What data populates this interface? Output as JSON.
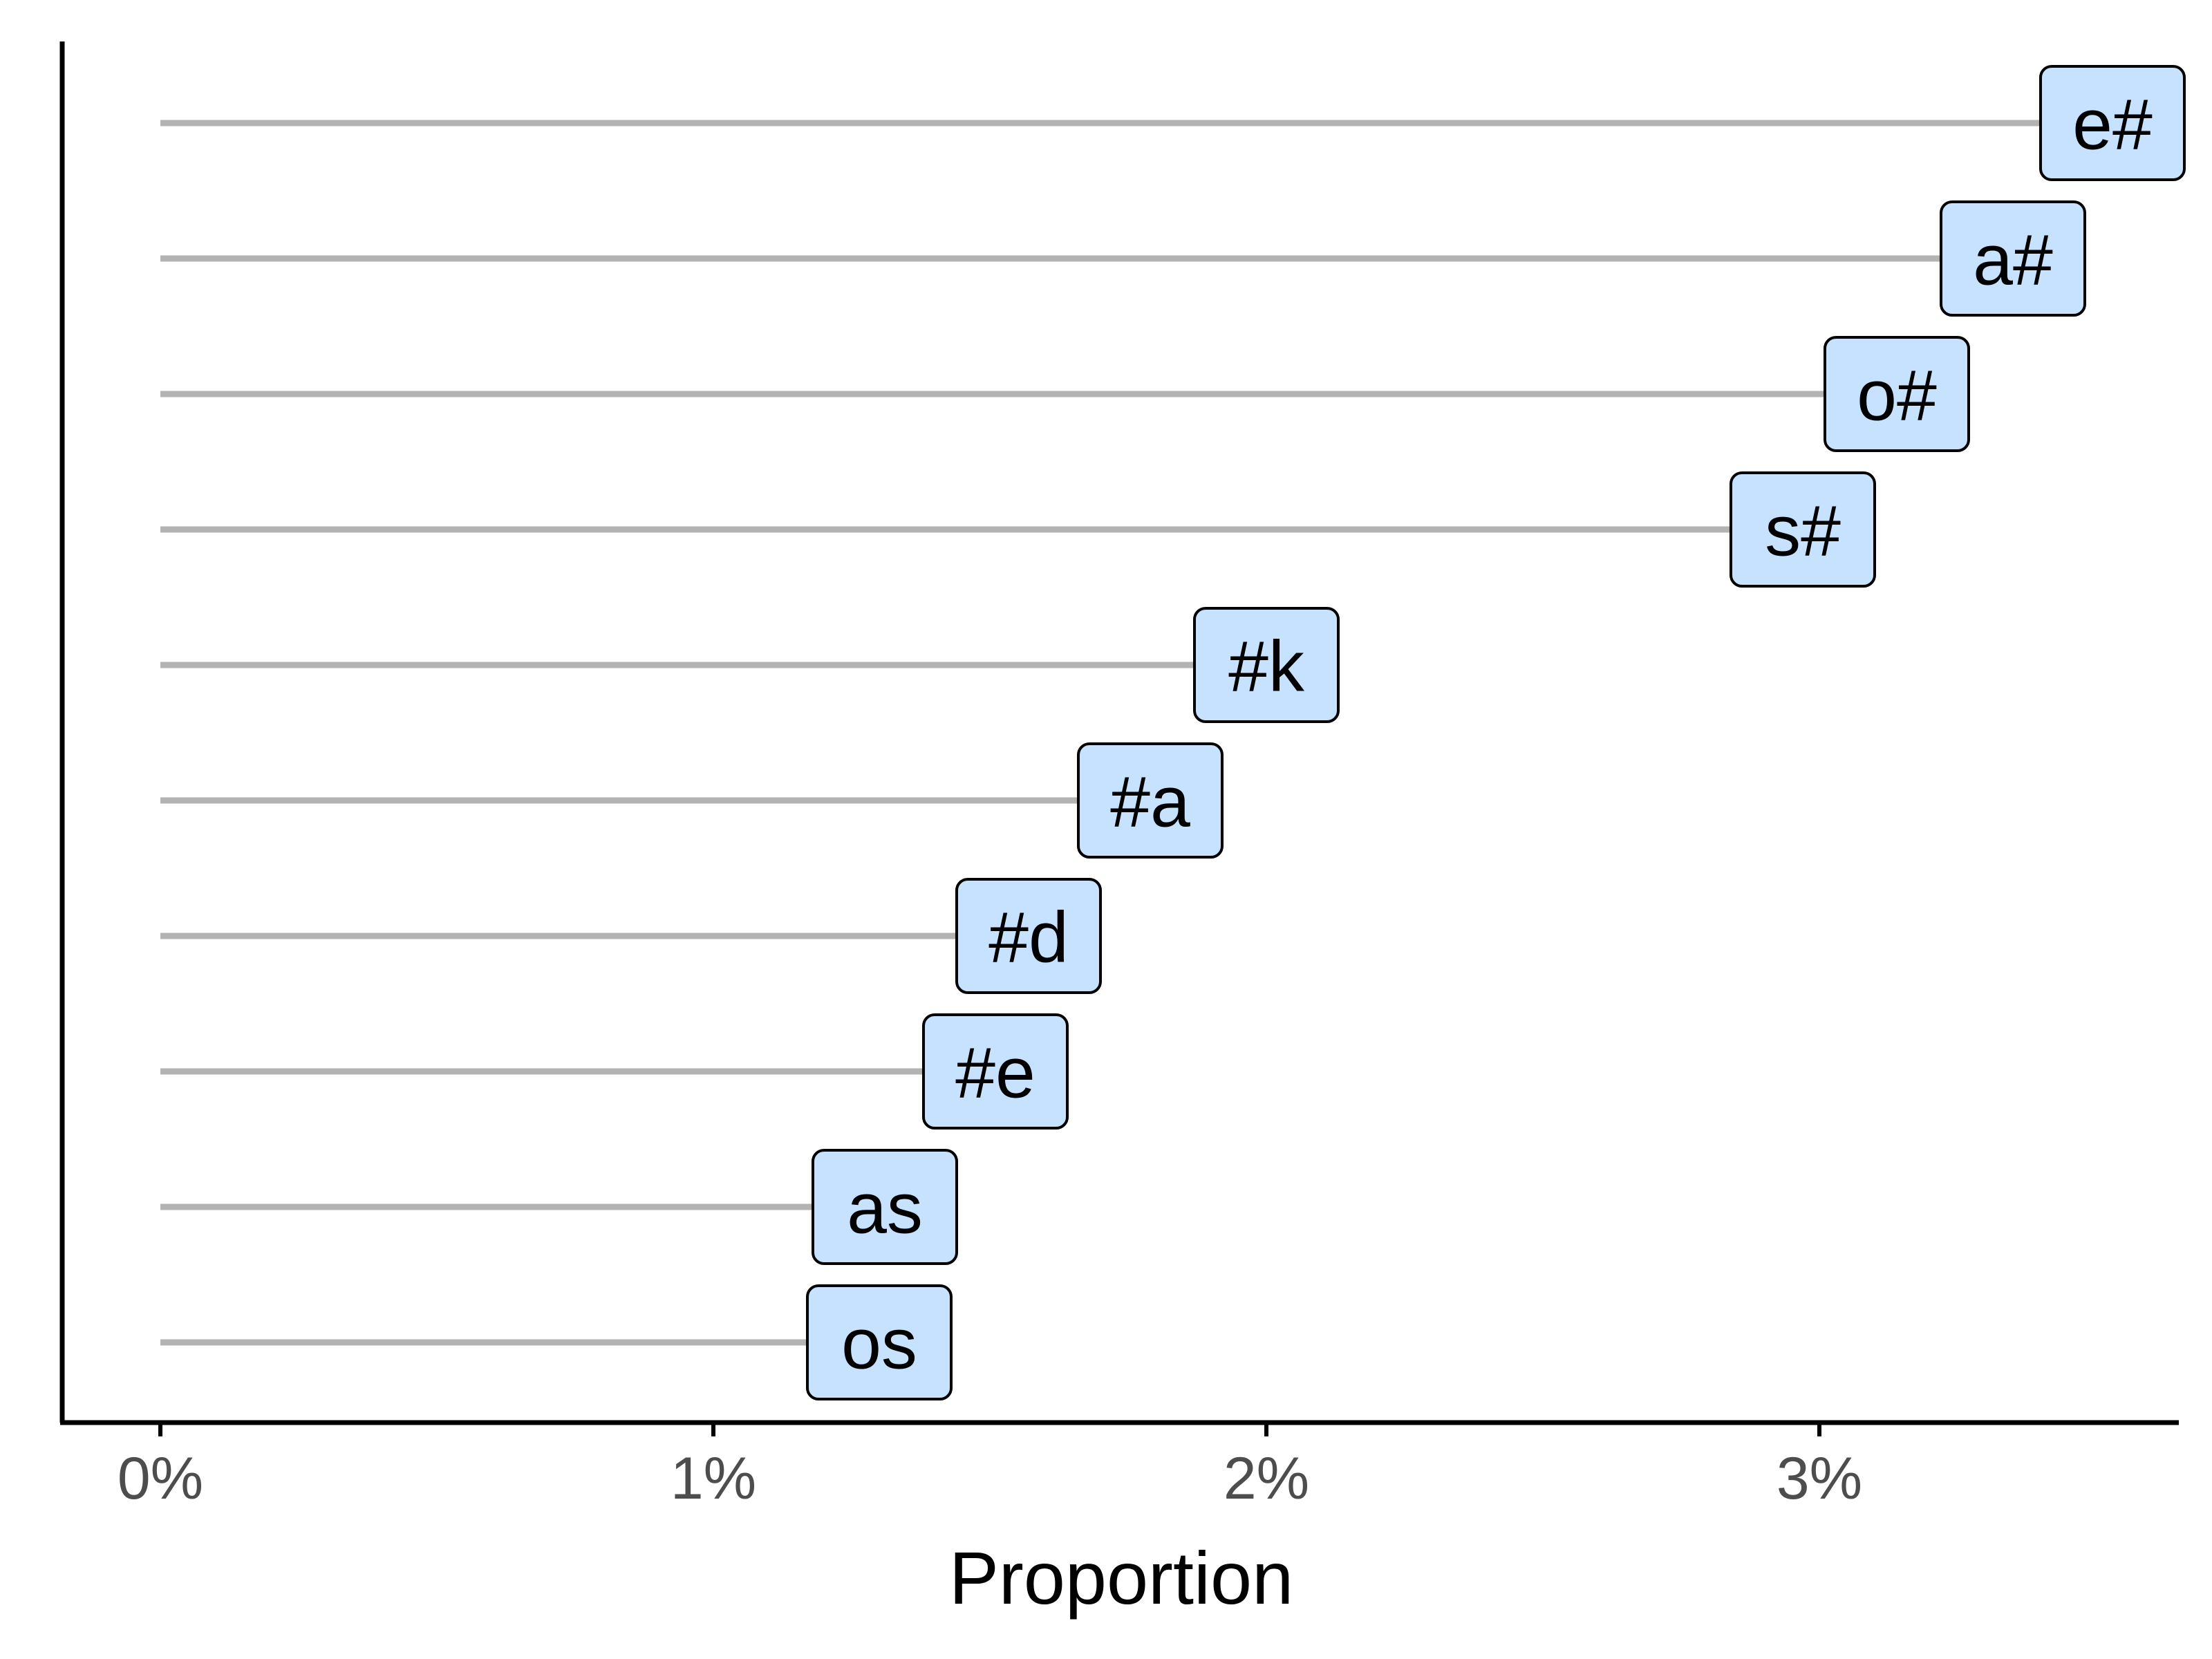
{
  "chart_data": {
    "type": "bar",
    "orientation": "horizontal",
    "style": "lollipop-label",
    "categories": [
      "e#",
      "a#",
      "o#",
      "s#",
      "#k",
      "#a",
      "#d",
      "#e",
      "as",
      "os"
    ],
    "values": [
      3.4,
      3.22,
      3.01,
      2.84,
      1.87,
      1.66,
      1.44,
      1.38,
      1.18,
      1.17
    ],
    "value_unit": "%",
    "xlabel": "Proportion",
    "ylabel": "",
    "xlim": [
      0,
      3.6
    ],
    "x_ticks": [
      0,
      1,
      2,
      3
    ],
    "x_tick_labels": [
      "0%",
      "1%",
      "2%",
      "3%"
    ],
    "grid": false,
    "colors": {
      "line": "#b3b3b3",
      "label_fill": "#c6e2ff",
      "label_border": "#000000",
      "axis": "#000000",
      "tick_text": "#4d4d4d"
    }
  }
}
